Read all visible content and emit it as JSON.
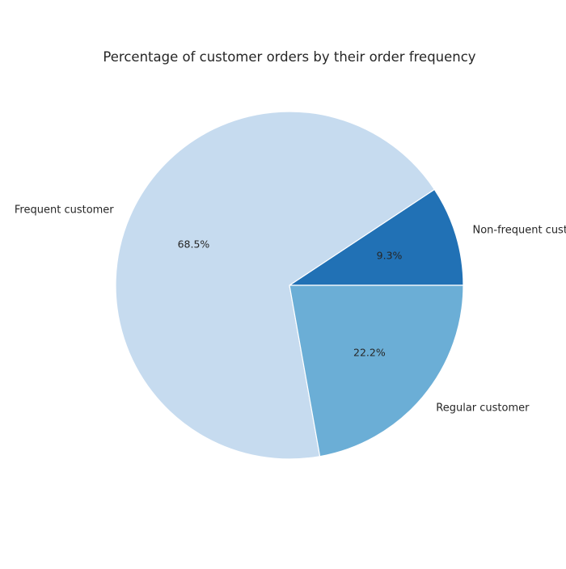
{
  "chart_data": {
    "type": "pie",
    "title": "Percentage of customer orders by their order frequency",
    "categories": [
      "Non-frequent customer",
      "Frequent customer",
      "Regular customer"
    ],
    "values": [
      9.3,
      68.5,
      22.2
    ],
    "value_labels": [
      "9.3%",
      "68.5%",
      "22.2%"
    ],
    "colors": [
      "#2171b5",
      "#c6dbef",
      "#6baed6"
    ],
    "start_angle_deg": 0,
    "direction": "counterclockwise",
    "edge_color": "#ffffff"
  }
}
